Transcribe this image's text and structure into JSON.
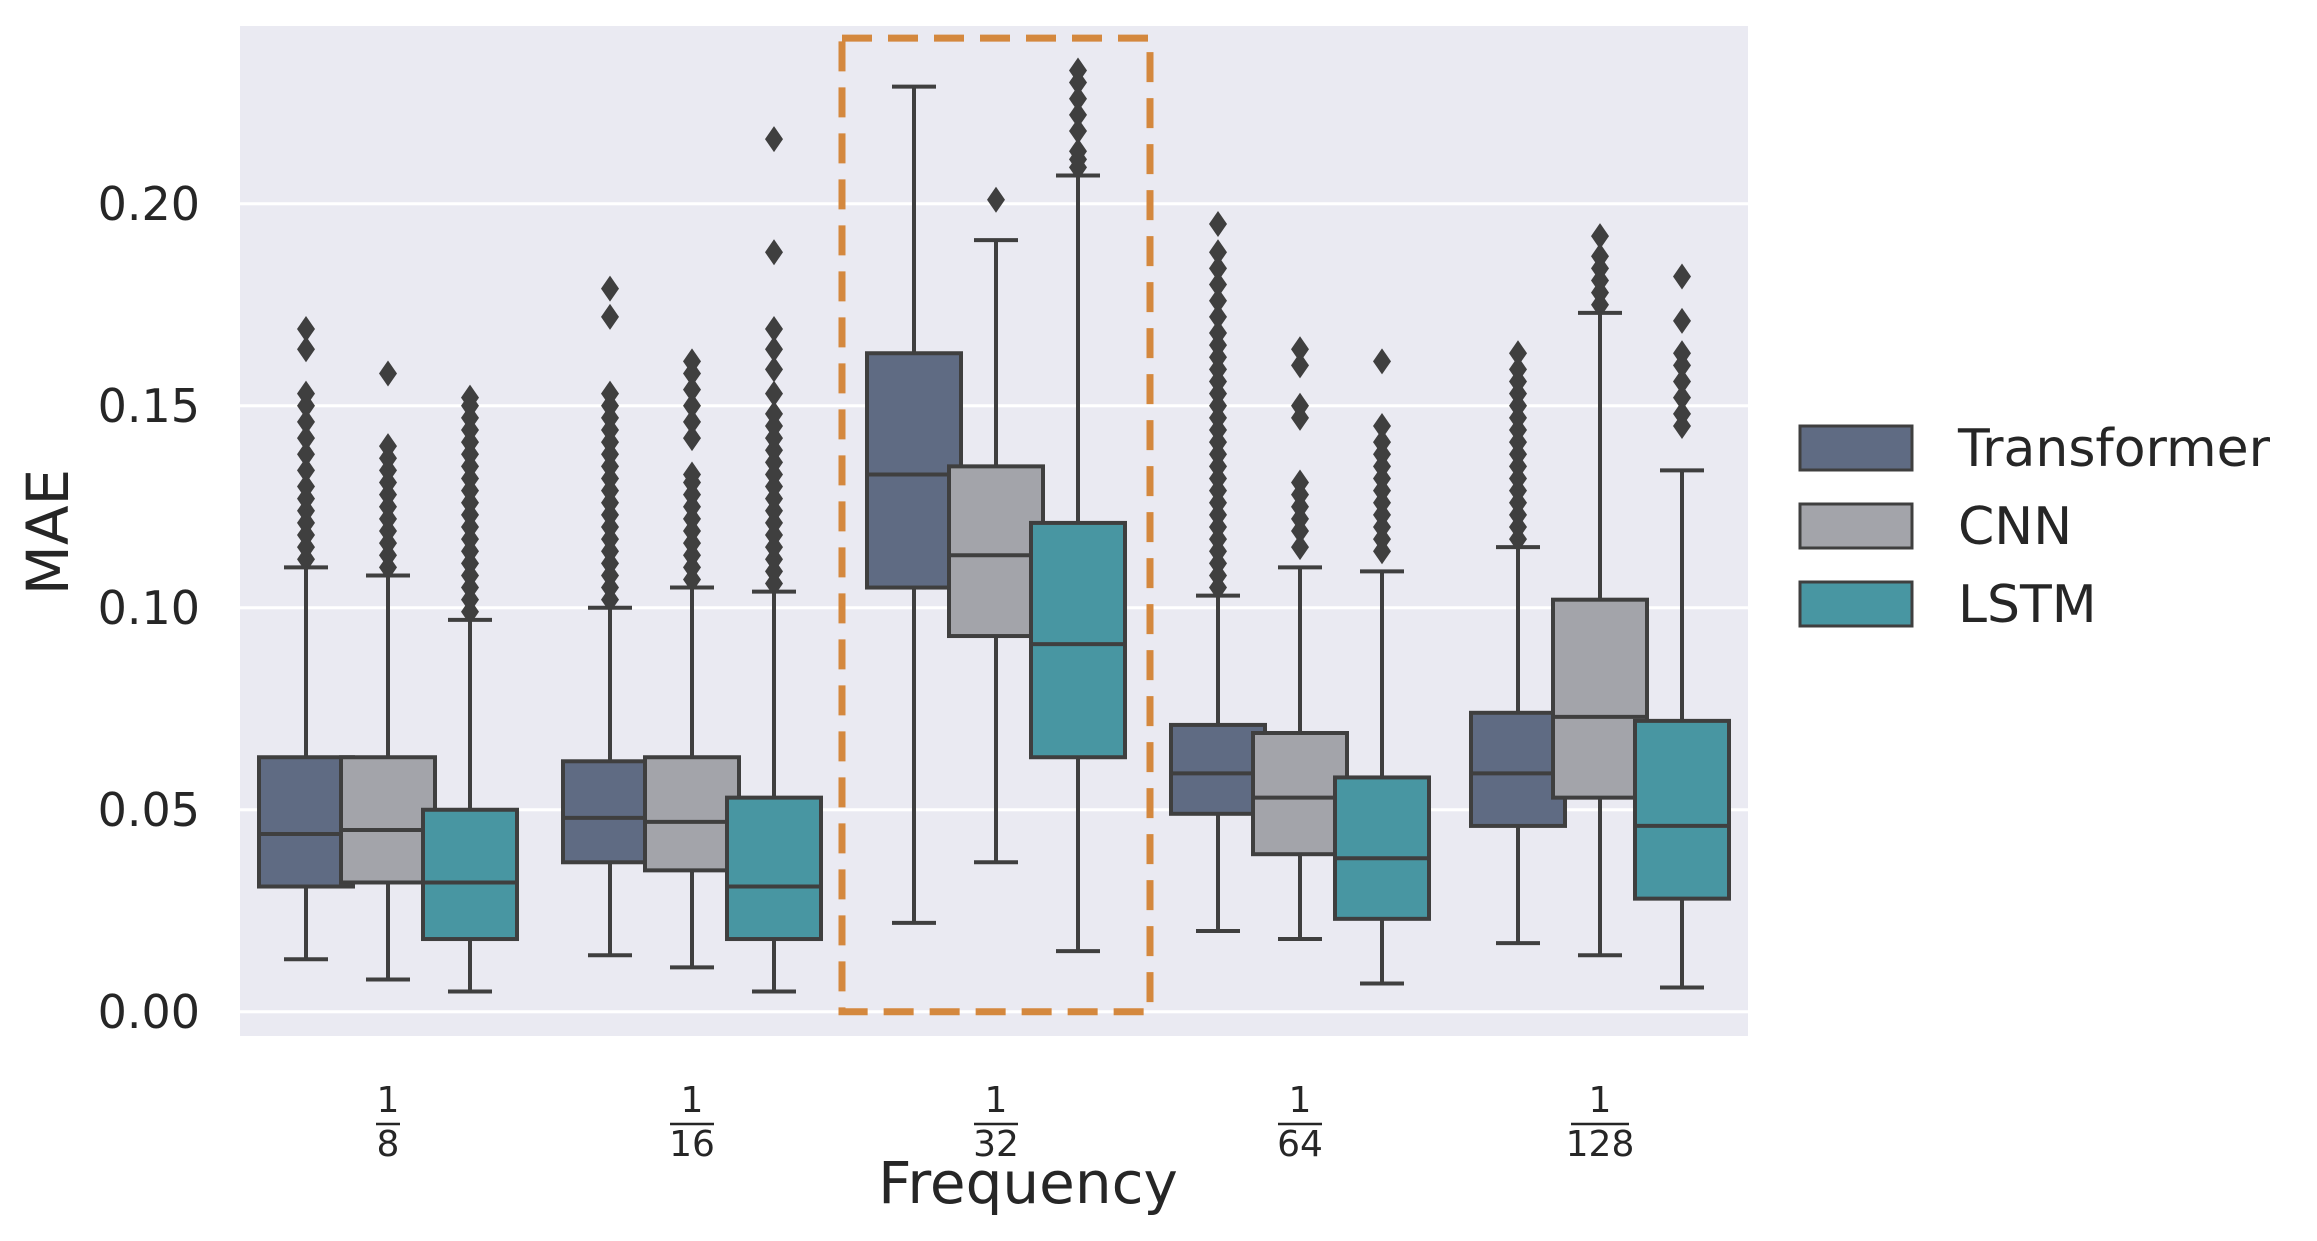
{
  "chart_data": {
    "type": "boxplot",
    "title": "",
    "xlabel": "Frequency",
    "ylabel": "MAE",
    "ylim": [
      -0.006,
      0.244
    ],
    "yticks": [
      0.0,
      0.05,
      0.1,
      0.15,
      0.2
    ],
    "ytick_labels": [
      "0.00",
      "0.05",
      "0.10",
      "0.15",
      "0.20"
    ],
    "grid": true,
    "legend_position": "right",
    "categories": [
      {
        "numerator": "1",
        "denominator": "8"
      },
      {
        "numerator": "1",
        "denominator": "16"
      },
      {
        "numerator": "1",
        "denominator": "32"
      },
      {
        "numerator": "1",
        "denominator": "64"
      },
      {
        "numerator": "1",
        "denominator": "128"
      }
    ],
    "highlight": {
      "category_index": 2,
      "color": "#d4883e",
      "style": "dashed",
      "y_range": [
        0.0,
        0.241
      ]
    },
    "series": [
      {
        "name": "Transformer",
        "color": "#5f6b83",
        "boxes": [
          {
            "whislo": 0.013,
            "q1": 0.031,
            "med": 0.044,
            "q3": 0.063,
            "whishi": 0.11,
            "fliers": [
              0.112,
              0.115,
              0.118,
              0.121,
              0.124,
              0.127,
              0.13,
              0.134,
              0.138,
              0.142,
              0.146,
              0.15,
              0.153,
              0.164,
              0.169
            ]
          },
          {
            "whislo": 0.014,
            "q1": 0.037,
            "med": 0.048,
            "q3": 0.062,
            "whishi": 0.1,
            "fliers": [
              0.102,
              0.105,
              0.108,
              0.111,
              0.114,
              0.117,
              0.12,
              0.123,
              0.126,
              0.129,
              0.132,
              0.135,
              0.138,
              0.141,
              0.144,
              0.147,
              0.15,
              0.153,
              0.172,
              0.179
            ]
          },
          {
            "whislo": 0.022,
            "q1": 0.105,
            "med": 0.133,
            "q3": 0.163,
            "whishi": 0.229,
            "fliers": []
          },
          {
            "whislo": 0.02,
            "q1": 0.049,
            "med": 0.059,
            "q3": 0.071,
            "whishi": 0.103,
            "fliers": [
              0.105,
              0.108,
              0.111,
              0.114,
              0.117,
              0.12,
              0.123,
              0.126,
              0.129,
              0.132,
              0.135,
              0.138,
              0.141,
              0.144,
              0.147,
              0.15,
              0.153,
              0.156,
              0.159,
              0.162,
              0.165,
              0.168,
              0.172,
              0.176,
              0.18,
              0.184,
              0.188,
              0.195
            ]
          },
          {
            "whislo": 0.017,
            "q1": 0.046,
            "med": 0.059,
            "q3": 0.074,
            "whishi": 0.115,
            "fliers": [
              0.117,
              0.12,
              0.123,
              0.126,
              0.129,
              0.132,
              0.135,
              0.138,
              0.141,
              0.144,
              0.147,
              0.15,
              0.153,
              0.156,
              0.159,
              0.163
            ]
          }
        ]
      },
      {
        "name": "CNN",
        "color": "#a3a4aa",
        "boxes": [
          {
            "whislo": 0.008,
            "q1": 0.032,
            "med": 0.045,
            "q3": 0.063,
            "whishi": 0.108,
            "fliers": [
              0.11,
              0.113,
              0.116,
              0.119,
              0.122,
              0.125,
              0.128,
              0.131,
              0.134,
              0.137,
              0.14,
              0.158
            ]
          },
          {
            "whislo": 0.011,
            "q1": 0.035,
            "med": 0.047,
            "q3": 0.063,
            "whishi": 0.105,
            "fliers": [
              0.107,
              0.11,
              0.113,
              0.116,
              0.119,
              0.122,
              0.125,
              0.128,
              0.131,
              0.133,
              0.142,
              0.146,
              0.15,
              0.154,
              0.158,
              0.161
            ]
          },
          {
            "whislo": 0.037,
            "q1": 0.093,
            "med": 0.113,
            "q3": 0.135,
            "whishi": 0.191,
            "fliers": [
              0.201
            ]
          },
          {
            "whislo": 0.018,
            "q1": 0.039,
            "med": 0.053,
            "q3": 0.069,
            "whishi": 0.11,
            "fliers": [
              0.115,
              0.119,
              0.122,
              0.125,
              0.128,
              0.131,
              0.147,
              0.15,
              0.16,
              0.164
            ]
          },
          {
            "whislo": 0.014,
            "q1": 0.053,
            "med": 0.073,
            "q3": 0.102,
            "whishi": 0.173,
            "fliers": [
              0.175,
              0.178,
              0.181,
              0.184,
              0.187,
              0.192
            ]
          }
        ]
      },
      {
        "name": "LSTM",
        "color": "#4896a2",
        "boxes": [
          {
            "whislo": 0.005,
            "q1": 0.018,
            "med": 0.032,
            "q3": 0.05,
            "whishi": 0.097,
            "fliers": [
              0.099,
              0.102,
              0.105,
              0.108,
              0.111,
              0.114,
              0.117,
              0.12,
              0.123,
              0.126,
              0.129,
              0.132,
              0.135,
              0.138,
              0.141,
              0.144,
              0.147,
              0.15,
              0.152
            ]
          },
          {
            "whislo": 0.005,
            "q1": 0.018,
            "med": 0.031,
            "q3": 0.053,
            "whishi": 0.104,
            "fliers": [
              0.106,
              0.109,
              0.112,
              0.115,
              0.118,
              0.121,
              0.124,
              0.127,
              0.13,
              0.133,
              0.136,
              0.139,
              0.142,
              0.145,
              0.148,
              0.153,
              0.159,
              0.164,
              0.169,
              0.188,
              0.216
            ]
          },
          {
            "whislo": 0.015,
            "q1": 0.063,
            "med": 0.091,
            "q3": 0.121,
            "whishi": 0.207,
            "fliers": [
              0.209,
              0.211,
              0.213,
              0.218,
              0.222,
              0.226,
              0.23,
              0.233
            ]
          },
          {
            "whislo": 0.007,
            "q1": 0.023,
            "med": 0.038,
            "q3": 0.058,
            "whishi": 0.109,
            "fliers": [
              0.114,
              0.117,
              0.12,
              0.123,
              0.126,
              0.129,
              0.132,
              0.135,
              0.138,
              0.141,
              0.145,
              0.161
            ]
          },
          {
            "whislo": 0.006,
            "q1": 0.028,
            "med": 0.046,
            "q3": 0.072,
            "whishi": 0.134,
            "fliers": [
              0.145,
              0.148,
              0.152,
              0.156,
              0.16,
              0.163,
              0.171,
              0.182
            ]
          }
        ]
      }
    ]
  }
}
